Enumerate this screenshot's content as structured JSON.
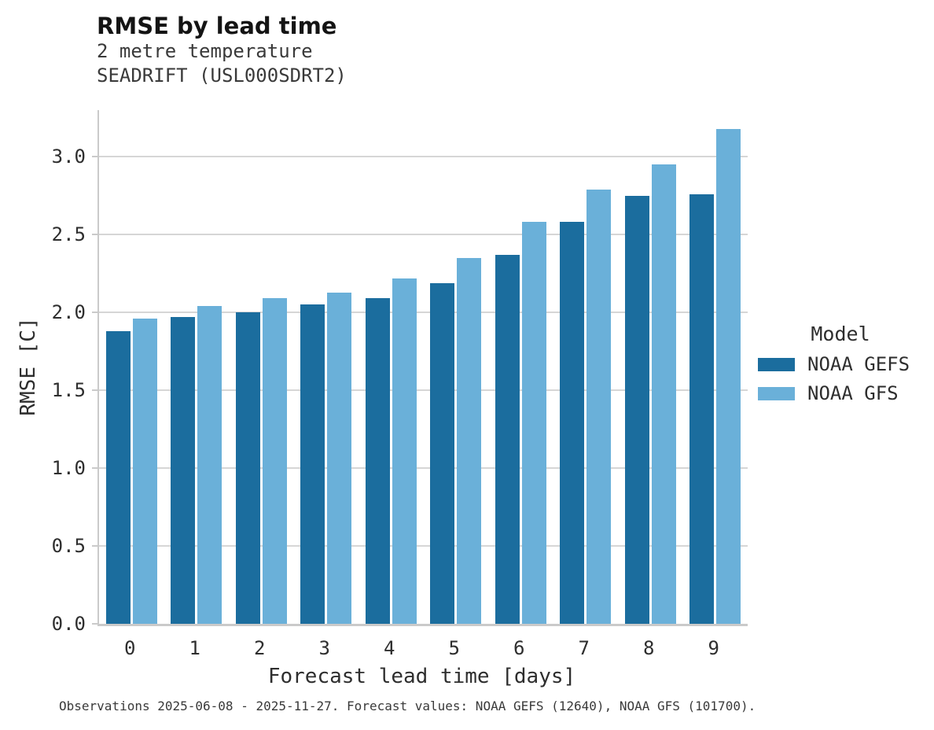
{
  "header": {
    "title": "RMSE by lead time",
    "subtitle_line1": "2 metre temperature",
    "subtitle_line2": "SEADRIFT (USL000SDRT2)"
  },
  "legend": {
    "title": "Model",
    "items": [
      {
        "label": "NOAA GEFS",
        "color": "#1b6d9e"
      },
      {
        "label": "NOAA GFS",
        "color": "#6ab0d9"
      }
    ]
  },
  "caption": "Observations 2025-06-08 - 2025-11-27. Forecast values: NOAA GEFS (12640), NOAA GFS (101700).",
  "colors": {
    "series_dark": "#1b6d9e",
    "series_light": "#6ab0d9",
    "gridline": "#d6d6d6",
    "spine": "#cacaca",
    "text": "#2e2e2e"
  },
  "chart_data": {
    "type": "bar",
    "title": "RMSE by lead time",
    "subtitle": [
      "2 metre temperature",
      "SEADRIFT (USL000SDRT2)"
    ],
    "categories": [
      "0",
      "1",
      "2",
      "3",
      "4",
      "5",
      "6",
      "7",
      "8",
      "9"
    ],
    "series": [
      {
        "name": "NOAA GEFS",
        "color": "#1b6d9e",
        "values": [
          1.88,
          1.97,
          2.0,
          2.05,
          2.09,
          2.19,
          2.37,
          2.58,
          2.75,
          2.76
        ]
      },
      {
        "name": "NOAA GFS",
        "color": "#6ab0d9",
        "values": [
          1.96,
          2.04,
          2.09,
          2.13,
          2.22,
          2.35,
          2.58,
          2.79,
          2.95,
          3.18
        ]
      }
    ],
    "xlabel": "Forecast lead time [days]",
    "ylabel": "RMSE [C]",
    "ylim": [
      0,
      3.3
    ],
    "yticks": [
      0.0,
      0.5,
      1.0,
      1.5,
      2.0,
      2.5,
      3.0
    ],
    "grid": "horizontal",
    "legend_title": "Model",
    "legend_position": "right",
    "caption": "Observations 2025-06-08 - 2025-11-27. Forecast values: NOAA GEFS (12640), NOAA GFS (101700)."
  }
}
